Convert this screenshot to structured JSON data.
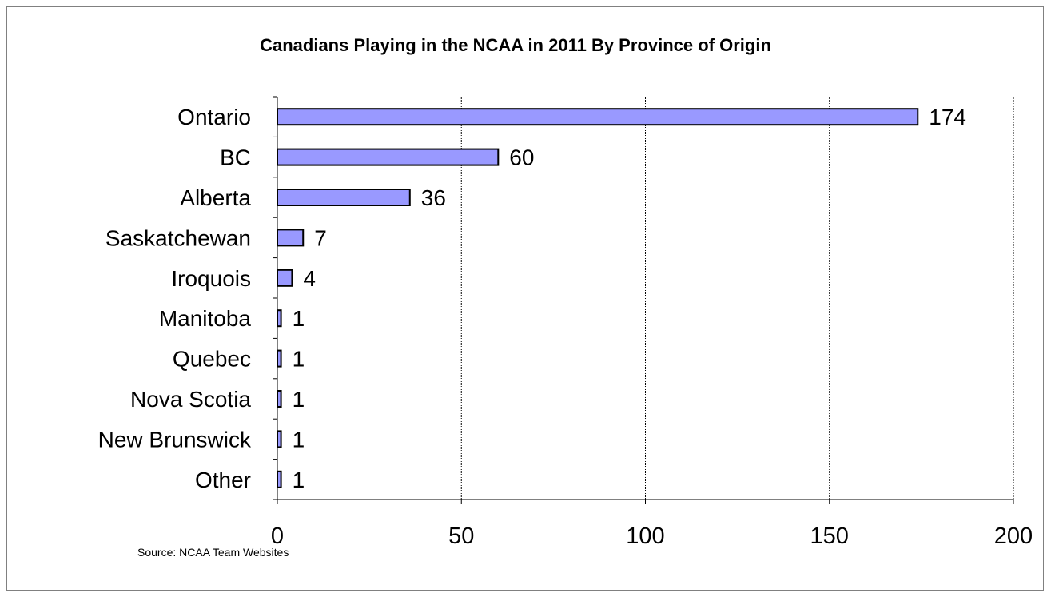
{
  "chart_data": {
    "type": "bar",
    "orientation": "horizontal",
    "title": "Canadians Playing in the NCAA in 2011 By Province of Origin",
    "categories": [
      "Ontario",
      "BC",
      "Alberta",
      "Saskatchewan",
      "Iroquois",
      "Manitoba",
      "Quebec",
      "Nova Scotia",
      "New Brunswick",
      "Other"
    ],
    "values": [
      174,
      60,
      36,
      7,
      4,
      1,
      1,
      1,
      1,
      1
    ],
    "xlim": [
      0,
      200
    ],
    "xticks": [
      0,
      50,
      100,
      150,
      200
    ],
    "xlabel": "",
    "ylabel": "",
    "grid": true,
    "legend": "none",
    "bar_color": "#9999ff",
    "source": "Source: NCAA Team Websites"
  }
}
